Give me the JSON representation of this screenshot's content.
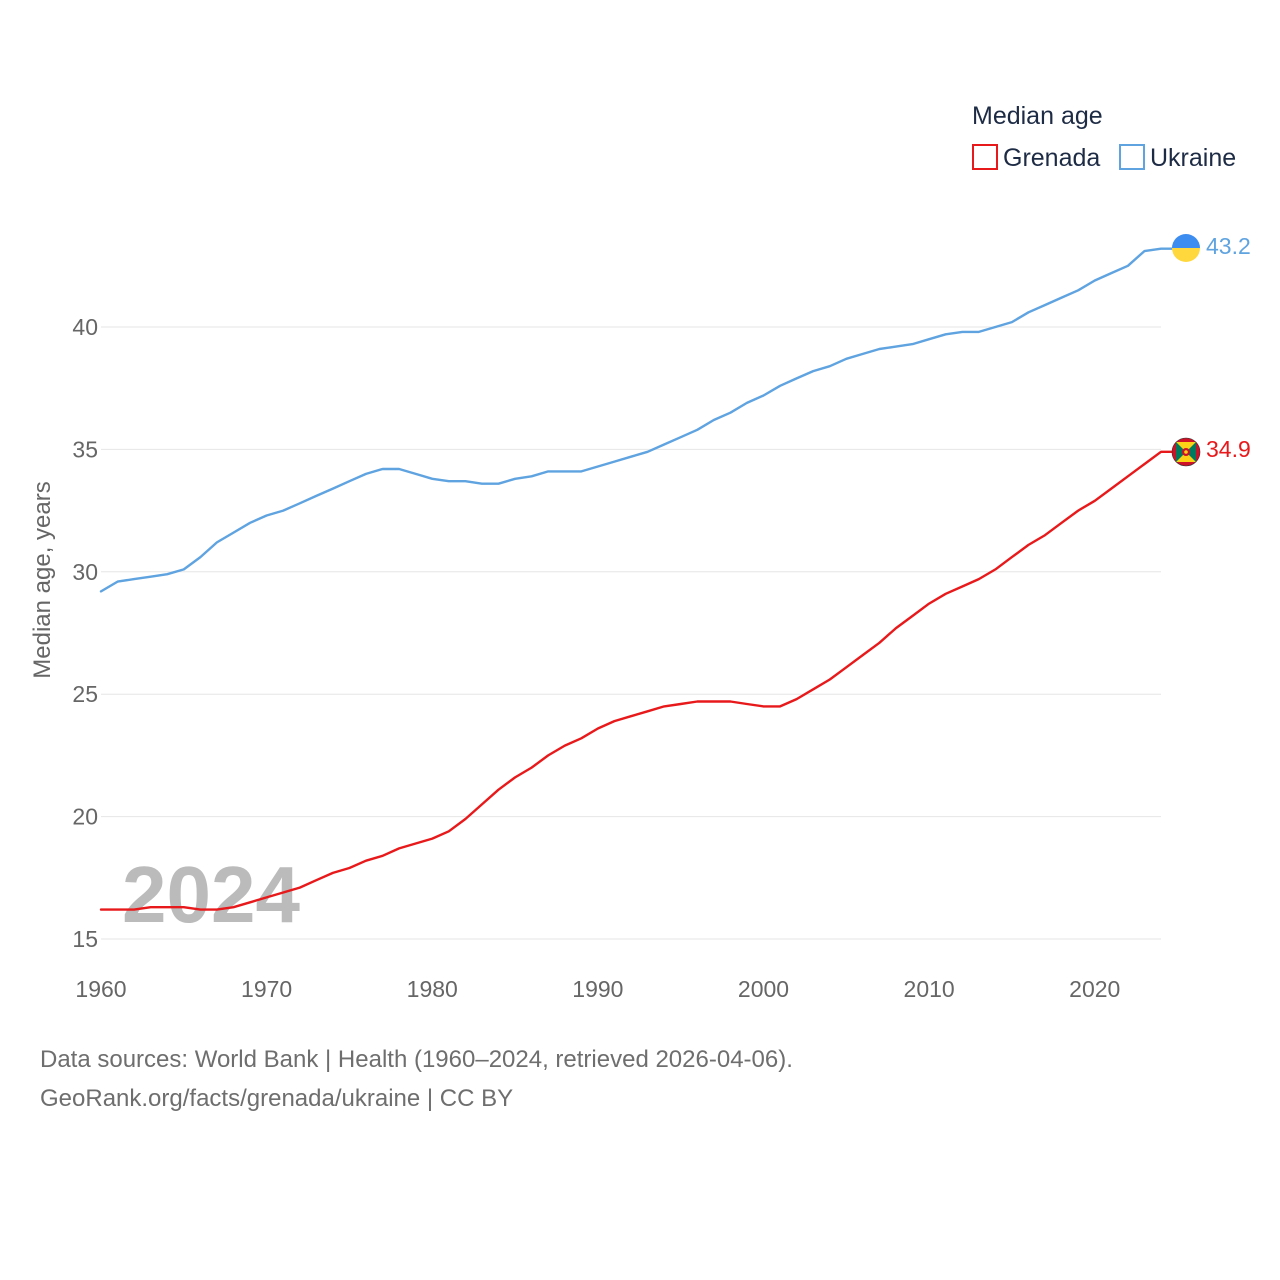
{
  "legend": {
    "title": "Median age",
    "items": [
      {
        "label": "Grenada",
        "color": "#e8191b"
      },
      {
        "label": "Ukraine",
        "color": "#5fa3e0"
      }
    ]
  },
  "watermark_year": "2024",
  "footer": {
    "line1": "Data sources: World Bank | Health (1960–2024, retrieved 2026-04-06).",
    "line2": "GeoRank.org/facts/grenada/ukraine | CC BY"
  },
  "chart_data": {
    "type": "line",
    "title": "Median age",
    "xlabel": "",
    "ylabel": "Median age, years",
    "xlim": [
      1960,
      2024
    ],
    "ylim": [
      15,
      43.5
    ],
    "x_ticks": [
      "1960",
      "1970",
      "1980",
      "1990",
      "2000",
      "2010",
      "2020"
    ],
    "y_ticks": [
      "15",
      "20",
      "25",
      "30",
      "35",
      "40"
    ],
    "grid": true,
    "legend_position": "top-right",
    "x": [
      1960,
      1961,
      1962,
      1963,
      1964,
      1965,
      1966,
      1967,
      1968,
      1969,
      1970,
      1971,
      1972,
      1973,
      1974,
      1975,
      1976,
      1977,
      1978,
      1979,
      1980,
      1981,
      1982,
      1983,
      1984,
      1985,
      1986,
      1987,
      1988,
      1989,
      1990,
      1991,
      1992,
      1993,
      1994,
      1995,
      1996,
      1997,
      1998,
      1999,
      2000,
      2001,
      2002,
      2003,
      2004,
      2005,
      2006,
      2007,
      2008,
      2009,
      2010,
      2011,
      2012,
      2013,
      2014,
      2015,
      2016,
      2017,
      2018,
      2019,
      2020,
      2021,
      2022,
      2023,
      2024
    ],
    "series": [
      {
        "name": "Grenada",
        "color": "#e8191b",
        "end_label": "34.9",
        "values": [
          16.2,
          16.2,
          16.2,
          16.3,
          16.3,
          16.3,
          16.2,
          16.2,
          16.3,
          16.5,
          16.7,
          16.9,
          17.1,
          17.4,
          17.7,
          17.9,
          18.2,
          18.4,
          18.7,
          18.9,
          19.1,
          19.4,
          19.9,
          20.5,
          21.1,
          21.6,
          22.0,
          22.5,
          22.9,
          23.2,
          23.6,
          23.9,
          24.1,
          24.3,
          24.5,
          24.6,
          24.7,
          24.7,
          24.7,
          24.6,
          24.5,
          24.5,
          24.8,
          25.2,
          25.6,
          26.1,
          26.6,
          27.1,
          27.7,
          28.2,
          28.7,
          29.1,
          29.4,
          29.7,
          30.1,
          30.6,
          31.1,
          31.5,
          32.0,
          32.5,
          32.9,
          33.4,
          33.9,
          34.4,
          34.9
        ]
      },
      {
        "name": "Ukraine",
        "color": "#5fa3e0",
        "end_label": "43.2",
        "values": [
          29.2,
          29.6,
          29.7,
          29.8,
          29.9,
          30.1,
          30.6,
          31.2,
          31.6,
          32.0,
          32.3,
          32.5,
          32.8,
          33.1,
          33.4,
          33.7,
          34.0,
          34.2,
          34.2,
          34.0,
          33.8,
          33.7,
          33.7,
          33.6,
          33.6,
          33.8,
          33.9,
          34.1,
          34.1,
          34.1,
          34.3,
          34.5,
          34.7,
          34.9,
          35.2,
          35.5,
          35.8,
          36.2,
          36.5,
          36.9,
          37.2,
          37.6,
          37.9,
          38.2,
          38.4,
          38.7,
          38.9,
          39.1,
          39.2,
          39.3,
          39.5,
          39.7,
          39.8,
          39.8,
          40.0,
          40.2,
          40.6,
          40.9,
          41.2,
          41.5,
          41.9,
          42.2,
          42.5,
          43.1,
          43.2
        ]
      }
    ]
  }
}
